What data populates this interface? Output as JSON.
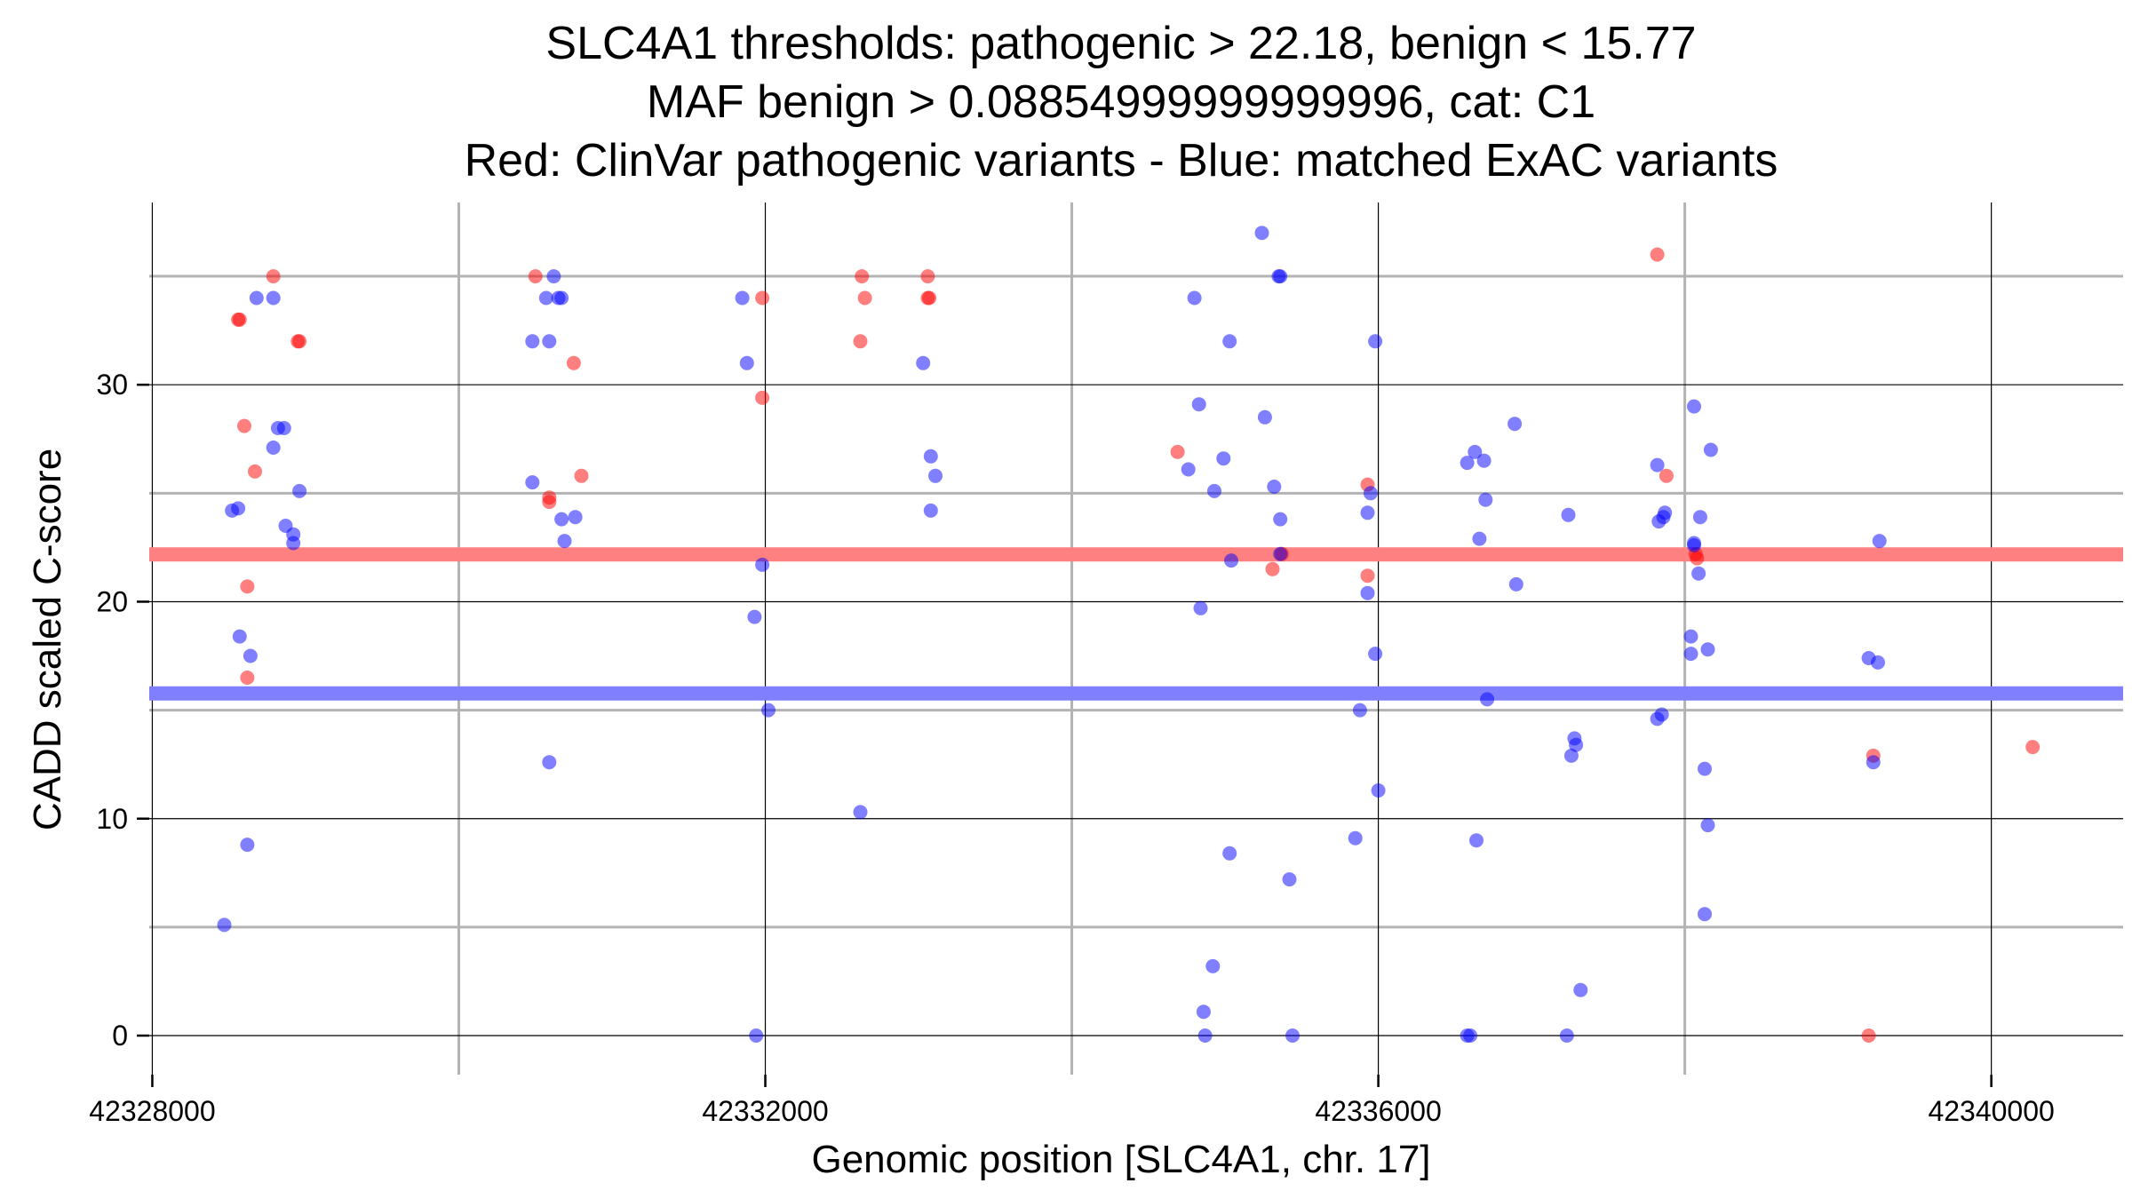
{
  "chart_data": {
    "type": "scatter",
    "title_lines": [
      "SLC4A1 thresholds: pathogenic > 22.18, benign < 15.77",
      "MAF benign > 0.08854999999999996, cat: C1",
      "Red: ClinVar pathogenic variants - Blue: matched ExAC variants"
    ],
    "xlabel": "Genomic position [SLC4A1, chr. 17]",
    "ylabel": "CADD scaled C-score",
    "xlim": [
      42327980,
      42340860
    ],
    "ylim": [
      -1.8,
      38.4
    ],
    "x_ticks": [
      42328000,
      42332000,
      42336000,
      42340000
    ],
    "x_tick_labels": [
      "42328000",
      "42332000",
      "42336000",
      "42340000"
    ],
    "x_minor_ticks": [
      42330000,
      42334000,
      42338000
    ],
    "y_ticks": [
      0,
      10,
      20,
      30
    ],
    "y_tick_labels": [
      "0",
      "10",
      "20",
      "30"
    ],
    "y_minor_ticks": [
      5,
      15,
      25,
      35
    ],
    "thresholds": {
      "pathogenic": 22.18,
      "benign": 15.77,
      "pathogenic_color": "#ff8080",
      "benign_color": "#8080ff"
    },
    "grid": true,
    "series": [
      {
        "name": "ClinVar pathogenic variants",
        "color": "#ff0000",
        "points": [
          [
            42328790,
            35.0
          ],
          [
            42328570,
            33.0
          ],
          [
            42328560,
            33.0
          ],
          [
            42328960,
            32.0
          ],
          [
            42328950,
            32.0
          ],
          [
            42328600,
            28.1
          ],
          [
            42328670,
            26.0
          ],
          [
            42328620,
            20.7
          ],
          [
            42328620,
            16.5
          ],
          [
            42330500,
            35.0
          ],
          [
            42330750,
            31.0
          ],
          [
            42330800,
            25.8
          ],
          [
            42330590,
            24.8
          ],
          [
            42330590,
            24.6
          ],
          [
            42331980,
            34.0
          ],
          [
            42331980,
            29.4
          ],
          [
            42332630,
            35.0
          ],
          [
            42332650,
            34.0
          ],
          [
            42332620,
            32.0
          ],
          [
            42333060,
            35.0
          ],
          [
            42333060,
            34.0
          ],
          [
            42333070,
            34.0
          ],
          [
            42334690,
            26.9
          ],
          [
            42335310,
            21.5
          ],
          [
            42335370,
            22.2
          ],
          [
            42335930,
            25.4
          ],
          [
            42335930,
            21.2
          ],
          [
            42337820,
            36.0
          ],
          [
            42337880,
            25.8
          ],
          [
            42338070,
            22.2
          ],
          [
            42338080,
            22.0
          ],
          [
            42339230,
            12.9
          ],
          [
            42339200,
            0.0
          ],
          [
            42340270,
            13.3
          ]
        ]
      },
      {
        "name": "matched ExAC variants",
        "color": "#0000ff",
        "points": [
          [
            42328680,
            34.0
          ],
          [
            42328790,
            34.0
          ],
          [
            42328820,
            28.0
          ],
          [
            42328860,
            28.0
          ],
          [
            42328790,
            27.1
          ],
          [
            42328520,
            24.2
          ],
          [
            42328560,
            24.3
          ],
          [
            42328960,
            25.1
          ],
          [
            42328870,
            23.5
          ],
          [
            42328920,
            23.1
          ],
          [
            42328920,
            22.7
          ],
          [
            42328570,
            18.4
          ],
          [
            42328640,
            17.5
          ],
          [
            42328620,
            8.8
          ],
          [
            42328470,
            5.1
          ],
          [
            42330620,
            35.0
          ],
          [
            42330570,
            34.0
          ],
          [
            42330650,
            34.0
          ],
          [
            42330670,
            34.0
          ],
          [
            42330480,
            32.0
          ],
          [
            42330590,
            32.0
          ],
          [
            42330480,
            25.5
          ],
          [
            42330670,
            23.8
          ],
          [
            42330760,
            23.9
          ],
          [
            42330690,
            22.8
          ],
          [
            42330590,
            12.6
          ],
          [
            42331850,
            34.0
          ],
          [
            42331880,
            31.0
          ],
          [
            42331980,
            21.7
          ],
          [
            42331930,
            19.3
          ],
          [
            42332020,
            15.0
          ],
          [
            42331940,
            0.0
          ],
          [
            42333030,
            31.0
          ],
          [
            42333080,
            26.7
          ],
          [
            42333110,
            25.8
          ],
          [
            42333080,
            24.2
          ],
          [
            42332620,
            10.3
          ],
          [
            42335240,
            37.0
          ],
          [
            42335350,
            35.0
          ],
          [
            42335360,
            35.0
          ],
          [
            42334800,
            34.0
          ],
          [
            42335030,
            32.0
          ],
          [
            42335980,
            32.0
          ],
          [
            42334830,
            29.1
          ],
          [
            42335260,
            28.5
          ],
          [
            42334990,
            26.6
          ],
          [
            42334760,
            26.1
          ],
          [
            42335320,
            25.3
          ],
          [
            42335950,
            25.0
          ],
          [
            42334930,
            25.1
          ],
          [
            42335930,
            24.1
          ],
          [
            42335360,
            23.8
          ],
          [
            42335360,
            22.2
          ],
          [
            42335040,
            21.9
          ],
          [
            42335930,
            20.4
          ],
          [
            42334840,
            19.7
          ],
          [
            42335980,
            17.6
          ],
          [
            42335880,
            15.0
          ],
          [
            42336000,
            11.3
          ],
          [
            42335850,
            9.1
          ],
          [
            42335030,
            8.4
          ],
          [
            42335420,
            7.2
          ],
          [
            42334920,
            3.2
          ],
          [
            42334860,
            1.1
          ],
          [
            42334870,
            0.0
          ],
          [
            42335440,
            0.0
          ],
          [
            42336890,
            28.2
          ],
          [
            42336630,
            26.9
          ],
          [
            42336580,
            26.4
          ],
          [
            42336690,
            26.5
          ],
          [
            42336700,
            24.7
          ],
          [
            42337240,
            24.0
          ],
          [
            42336660,
            22.9
          ],
          [
            42336900,
            20.8
          ],
          [
            42336710,
            15.5
          ],
          [
            42337280,
            13.7
          ],
          [
            42337290,
            13.4
          ],
          [
            42337260,
            12.9
          ],
          [
            42336640,
            9.0
          ],
          [
            42337320,
            2.1
          ],
          [
            42336580,
            0.0
          ],
          [
            42336600,
            0.0
          ],
          [
            42337230,
            0.0
          ],
          [
            42338060,
            29.0
          ],
          [
            42338170,
            27.0
          ],
          [
            42337820,
            26.3
          ],
          [
            42338100,
            23.9
          ],
          [
            42337860,
            23.9
          ],
          [
            42337870,
            24.1
          ],
          [
            42337830,
            23.7
          ],
          [
            42338060,
            22.7
          ],
          [
            42338060,
            22.6
          ],
          [
            42338090,
            21.3
          ],
          [
            42338040,
            18.4
          ],
          [
            42338040,
            17.6
          ],
          [
            42338150,
            17.8
          ],
          [
            42337850,
            14.8
          ],
          [
            42337820,
            14.6
          ],
          [
            42338130,
            12.3
          ],
          [
            42338150,
            9.7
          ],
          [
            42338130,
            5.6
          ],
          [
            42339270,
            22.8
          ],
          [
            42339200,
            17.4
          ],
          [
            42339260,
            17.2
          ],
          [
            42339230,
            12.6
          ]
        ]
      }
    ]
  }
}
